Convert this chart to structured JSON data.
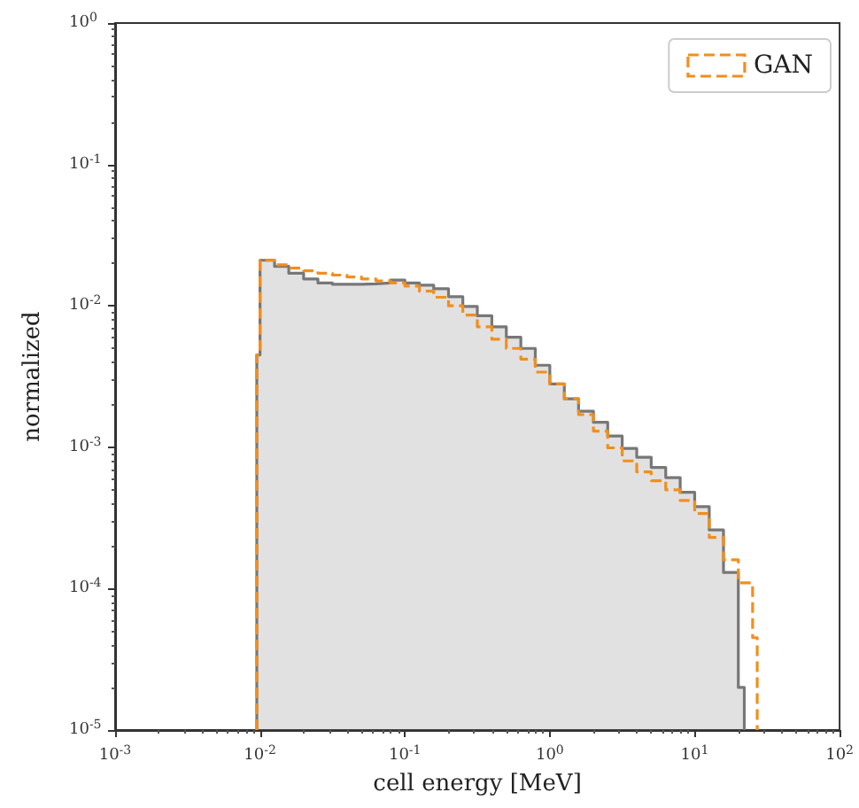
{
  "chart_data": {
    "type": "step",
    "xlabel": "cell energy [MeV]",
    "ylabel": "normalized",
    "log": "xy",
    "grid": false,
    "legend": "top right",
    "xlim": [
      0.001,
      100
    ],
    "ylim": [
      1e-05,
      1
    ],
    "xticks": [
      {
        "value": 0.001,
        "label": "10$^{-3}$"
      },
      {
        "value": 0.01,
        "label": "10$^{-2}$"
      },
      {
        "value": 0.1,
        "label": "10$^{-1}$"
      },
      {
        "value": 1,
        "label": "10$^{0}$"
      },
      {
        "value": 10,
        "label": "10$^{1}$"
      },
      {
        "value": 100,
        "label": "10$^{2}$"
      }
    ],
    "yticks": [
      {
        "value": 1e-05,
        "label": "10$^{-5}$"
      },
      {
        "value": 0.0001,
        "label": "10$^{-4}$"
      },
      {
        "value": 0.001,
        "label": "10$^{-3}$"
      },
      {
        "value": 0.01,
        "label": "10$^{-2}$"
      },
      {
        "value": 0.1,
        "label": "10$^{-1}$"
      },
      {
        "value": 1,
        "label": "10$^{0}$"
      }
    ],
    "series": [
      {
        "type": "area",
        "color": "#777777",
        "line_style": "solid",
        "x": [
          0.0095,
          0.0095,
          0.01,
          0.0126,
          0.0158,
          0.02,
          0.0251,
          0.0316,
          0.0398,
          0.0501,
          0.0631,
          0.0794,
          0.1,
          0.126,
          0.158,
          0.2,
          0.251,
          0.316,
          0.398,
          0.501,
          0.631,
          0.794,
          1,
          1.26,
          1.58,
          2,
          2.51,
          3.16,
          3.98,
          5.01,
          6.31,
          7.94,
          10,
          12.6,
          15.8,
          20,
          22
        ],
        "values": [
          1e-05,
          0.0045,
          0.021,
          0.019,
          0.017,
          0.0155,
          0.0145,
          0.0142,
          0.0142,
          0.0143,
          0.0145,
          0.0152,
          0.0145,
          0.014,
          0.0132,
          0.0116,
          0.0099,
          0.0085,
          0.0071,
          0.006,
          0.005,
          0.0038,
          0.0028,
          0.0022,
          0.0018,
          0.0015,
          0.0012,
          0.00098,
          0.00085,
          0.00072,
          0.00061,
          0.00048,
          0.00038,
          0.00026,
          0.00013,
          2e-05,
          1e-05
        ]
      },
      {
        "name": "GAN",
        "color": "#f28e1c",
        "line_style": "dashed",
        "x": [
          0.0095,
          0.0095,
          0.01,
          0.0126,
          0.0158,
          0.02,
          0.0251,
          0.0316,
          0.0398,
          0.0501,
          0.0631,
          0.0794,
          0.1,
          0.126,
          0.158,
          0.2,
          0.251,
          0.316,
          0.398,
          0.501,
          0.631,
          0.794,
          1,
          1.26,
          1.58,
          2,
          2.51,
          3.16,
          3.98,
          5.01,
          6.31,
          7.94,
          10,
          12.6,
          15.8,
          20,
          25.1,
          27
        ],
        "values": [
          1e-05,
          0.0045,
          0.021,
          0.0195,
          0.0185,
          0.0177,
          0.017,
          0.0165,
          0.016,
          0.0155,
          0.015,
          0.0145,
          0.0138,
          0.0127,
          0.0115,
          0.01,
          0.0086,
          0.0071,
          0.0058,
          0.005,
          0.0042,
          0.0034,
          0.0028,
          0.0022,
          0.0017,
          0.0013,
          0.00099,
          0.0008,
          0.00067,
          0.00058,
          0.0005,
          0.00042,
          0.00034,
          0.00023,
          0.00016,
          0.00011,
          4.5e-05,
          1e-05
        ]
      }
    ]
  }
}
